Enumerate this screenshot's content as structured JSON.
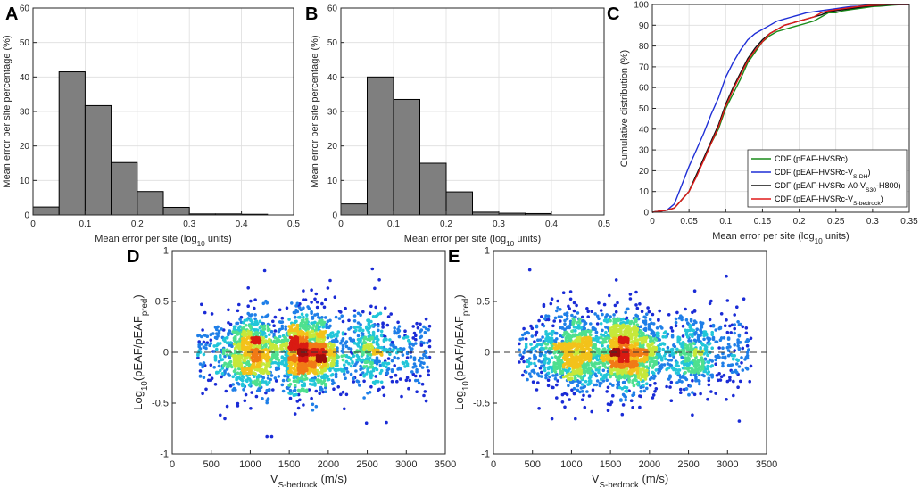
{
  "chart_data": [
    {
      "panel": "A",
      "type": "bar",
      "xlabel": "Mean error per site (log",
      "xlabel_sub": "10",
      "xlabel_tail": " units)",
      "ylabel": "Mean error per site percentage (%)",
      "xlim": [
        0,
        0.5
      ],
      "ylim": [
        0,
        60
      ],
      "xticks": [
        "0",
        "0.1",
        "0.2",
        "0.3",
        "0.4",
        "0.5"
      ],
      "yticks": [
        "0",
        "10",
        "20",
        "30",
        "40",
        "50",
        "60"
      ],
      "bin_edges": [
        0,
        0.05,
        0.1,
        0.15,
        0.2,
        0.25,
        0.3,
        0.35,
        0.4,
        0.45
      ],
      "values": [
        2.3,
        41.5,
        31.7,
        15.2,
        6.8,
        2.2,
        0.3,
        0.3,
        0.2
      ]
    },
    {
      "panel": "B",
      "type": "bar",
      "xlabel": "Mean error per site (log",
      "xlabel_sub": "10",
      "xlabel_tail": " units)",
      "ylabel": "Mean error per site percentage (%)",
      "xlim": [
        0,
        0.5
      ],
      "ylim": [
        0,
        60
      ],
      "xticks": [
        "0",
        "0.1",
        "0.2",
        "0.3",
        "0.4",
        "0.5"
      ],
      "yticks": [
        "0",
        "10",
        "20",
        "30",
        "40",
        "50",
        "60"
      ],
      "bin_edges": [
        0,
        0.05,
        0.1,
        0.15,
        0.2,
        0.25,
        0.3,
        0.35,
        0.4
      ],
      "values": [
        3.2,
        40.0,
        33.5,
        15.0,
        6.7,
        0.8,
        0.5,
        0.4
      ]
    },
    {
      "panel": "C",
      "type": "line",
      "xlabel": "Mean error per site (log",
      "xlabel_sub": "10",
      "xlabel_tail": " units)",
      "ylabel": "Cumulative distribution (%)",
      "xlim": [
        0,
        0.35
      ],
      "ylim": [
        0,
        100
      ],
      "xticks": [
        "0",
        "0.05",
        "0.1",
        "0.15",
        "0.2",
        "0.25",
        "0.3",
        "0.35"
      ],
      "yticks": [
        "0",
        "10",
        "20",
        "30",
        "40",
        "50",
        "60",
        "70",
        "80",
        "90",
        "100"
      ],
      "series": [
        {
          "name": "CDF (pEAF-HVSRc)",
          "name_sub": "",
          "name_tail": "",
          "color": "#1a8c1a",
          "x": [
            0,
            0.01,
            0.02,
            0.03,
            0.04,
            0.05,
            0.06,
            0.07,
            0.08,
            0.09,
            0.1,
            0.11,
            0.12,
            0.13,
            0.14,
            0.15,
            0.16,
            0.17,
            0.18,
            0.19,
            0.2,
            0.21,
            0.22,
            0.23,
            0.24,
            0.25,
            0.26,
            0.27,
            0.28,
            0.29,
            0.3,
            0.31,
            0.32,
            0.33,
            0.34,
            0.35
          ],
          "y": [
            0,
            0.5,
            1,
            2,
            6,
            10,
            18,
            25,
            33,
            40,
            50,
            57,
            64,
            72,
            77,
            82,
            85,
            87,
            88,
            89,
            90,
            91,
            92,
            94,
            96,
            96,
            97,
            97.5,
            98,
            98.5,
            99,
            99.2,
            99.5,
            99.8,
            100,
            100
          ]
        },
        {
          "name": "CDF (pEAF-HVSRc-V",
          "name_sub": "S-DH",
          "name_tail": ")",
          "color": "#1f2fd6",
          "x": [
            0,
            0.01,
            0.02,
            0.03,
            0.04,
            0.05,
            0.06,
            0.07,
            0.08,
            0.09,
            0.1,
            0.11,
            0.12,
            0.13,
            0.14,
            0.15,
            0.16,
            0.17,
            0.18,
            0.19,
            0.2,
            0.21,
            0.22,
            0.23,
            0.24,
            0.25,
            0.26,
            0.27,
            0.28,
            0.29,
            0.3,
            0.31,
            0.32,
            0.33,
            0.34,
            0.35
          ],
          "y": [
            0,
            0.5,
            1,
            4,
            13,
            22,
            30,
            38,
            47,
            55,
            65,
            72,
            78,
            83,
            86,
            88,
            90,
            92,
            93,
            94,
            95,
            96,
            96.5,
            97,
            97.5,
            98,
            98.5,
            99,
            99.2,
            99.5,
            99.7,
            99.9,
            100,
            100,
            100,
            100
          ]
        },
        {
          "name": "CDF (pEAF-HVSRc-A0-V",
          "name_sub": "S30",
          "name_tail": "-H800)",
          "color": "#111111",
          "x": [
            0,
            0.01,
            0.02,
            0.03,
            0.04,
            0.05,
            0.06,
            0.07,
            0.08,
            0.09,
            0.1,
            0.11,
            0.12,
            0.13,
            0.14,
            0.15,
            0.16,
            0.17,
            0.18,
            0.19,
            0.2,
            0.21,
            0.22,
            0.23,
            0.24,
            0.25,
            0.26,
            0.27,
            0.28,
            0.29,
            0.3,
            0.31,
            0.32,
            0.33,
            0.34,
            0.35
          ],
          "y": [
            0,
            0.5,
            1,
            2,
            6,
            10,
            18,
            26,
            34,
            42,
            52,
            60,
            67,
            74,
            79,
            83,
            86,
            88,
            90,
            91,
            92,
            93,
            94,
            95,
            96.5,
            97,
            97.5,
            98,
            98.5,
            99,
            99.3,
            99.6,
            99.8,
            100,
            100,
            100
          ]
        },
        {
          "name": "CDF (pEAF-HVSRc-V",
          "name_sub": "S-bedrock",
          "name_tail": ")",
          "color": "#e01a1a",
          "x": [
            0,
            0.01,
            0.02,
            0.03,
            0.04,
            0.05,
            0.06,
            0.07,
            0.08,
            0.09,
            0.1,
            0.11,
            0.12,
            0.13,
            0.14,
            0.15,
            0.16,
            0.17,
            0.18,
            0.19,
            0.2,
            0.21,
            0.22,
            0.23,
            0.24,
            0.25,
            0.26,
            0.27,
            0.28,
            0.29,
            0.3,
            0.31,
            0.32,
            0.33,
            0.34,
            0.35
          ],
          "y": [
            0,
            0.5,
            1,
            2,
            6,
            10,
            17,
            25,
            33,
            41,
            51,
            59,
            66,
            73,
            78,
            82,
            86,
            88,
            90,
            91,
            92,
            93,
            94,
            96,
            97,
            97.5,
            98,
            98.5,
            99,
            99.3,
            99.6,
            99.8,
            100,
            100,
            100,
            100
          ]
        }
      ]
    },
    {
      "panel": "D",
      "type": "scatter",
      "xlabel": "V",
      "xlabel_sub": "S-bedrock",
      "xlabel_tail": " (m/s)",
      "ylabel": "Log",
      "ylabel_sub": "10",
      "ylabel_tail": "(pEAF/pEAF",
      "ylabel_sub2": "pred",
      "ylabel_tail2": ")",
      "xlim": [
        0,
        3500
      ],
      "ylim": [
        -1,
        1
      ],
      "xticks": [
        "0",
        "500",
        "1000",
        "1500",
        "2000",
        "2500",
        "3000",
        "3500"
      ],
      "yticks": [
        "-1",
        "-0.5",
        "0",
        "0.5",
        "1"
      ],
      "x_range": [
        320,
        3300
      ],
      "y_center": 0,
      "y_spread": 0.18,
      "density_peaks": [
        1050,
        1600,
        1850,
        2550
      ],
      "reference_line_y": 0
    },
    {
      "panel": "E",
      "type": "scatter",
      "xlabel": "V",
      "xlabel_sub": "S-bedrock",
      "xlabel_tail": " (m/s)",
      "ylabel": "Log",
      "ylabel_sub": "10",
      "ylabel_tail": "(pEAF/pEAF",
      "ylabel_sub2": "pred",
      "ylabel_tail2": ")",
      "xlim": [
        0,
        3500
      ],
      "ylim": [
        -1,
        1
      ],
      "xticks": [
        "0",
        "500",
        "1000",
        "1500",
        "2000",
        "2500",
        "3000",
        "3500"
      ],
      "yticks": [
        "-1",
        "-0.5",
        "0",
        "0.5",
        "1"
      ],
      "x_range": [
        320,
        3300
      ],
      "y_center": 0,
      "y_spread": 0.18,
      "density_peaks": [
        1050,
        1600,
        1850,
        2550
      ],
      "reference_line_y": 0
    }
  ],
  "style": {
    "bar_fill": "#7f7f7f",
    "bar_edge": "#000000",
    "grid": "#dedede",
    "axis": "#262626"
  }
}
